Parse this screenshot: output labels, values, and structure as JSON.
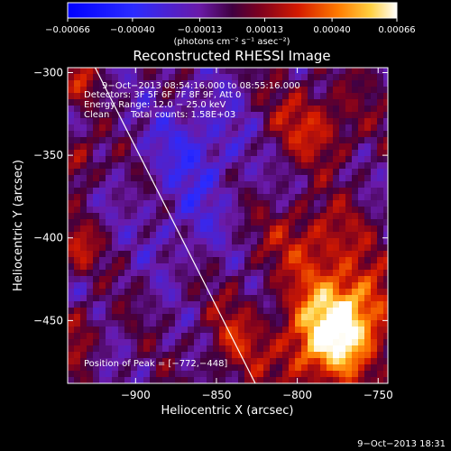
{
  "chart_data": {
    "type": "heatmap",
    "title": "Reconstructed RHESSI Image",
    "xlabel": "Heliocentric X (arcsec)",
    "ylabel": "Heliocentric Y (arcsec)",
    "xlim": [
      -942,
      -744
    ],
    "ylim": [
      -488,
      -297
    ],
    "x_ticks": [
      -900,
      -850,
      -800,
      -750
    ],
    "y_ticks": [
      -300,
      -350,
      -400,
      -450
    ],
    "x_tick_labels": [
      "−900",
      "−850",
      "−800",
      "−750"
    ],
    "y_tick_labels": [
      "−300",
      "−350",
      "−400",
      "−450"
    ],
    "colorbar": {
      "ticks": [
        -0.00066,
        -0.0004,
        -0.00013,
        0.00013,
        0.0004,
        0.00066
      ],
      "tick_labels": [
        "−0.00066",
        "−0.00040",
        "−0.00013",
        "0.00013",
        "0.00040",
        "0.00066"
      ],
      "unit_label": "(photons cm⁻² s⁻¹ asec⁻²)",
      "range": [
        -0.00066,
        0.00066
      ]
    },
    "annotations": {
      "time_range": "9−Oct−2013 08:54:16.000 to 08:55:16.000",
      "detectors": "Detectors: 3F 5F 6F 7F 8F 9F, Att 0",
      "energy_range": "Energy Range: 12.0 − 25.0 keV",
      "clean": "Clean",
      "total_counts": "Total counts: 1.58E+03",
      "peak": "Position of Peak = [−772,−448]"
    },
    "peak_position": [
      -772,
      -448
    ],
    "limb_line": [
      [
        -925,
        -297
      ],
      [
        -826,
        -488
      ]
    ],
    "grid": false
  },
  "footer": {
    "timestamp": "9−Oct−2013 18:31"
  }
}
